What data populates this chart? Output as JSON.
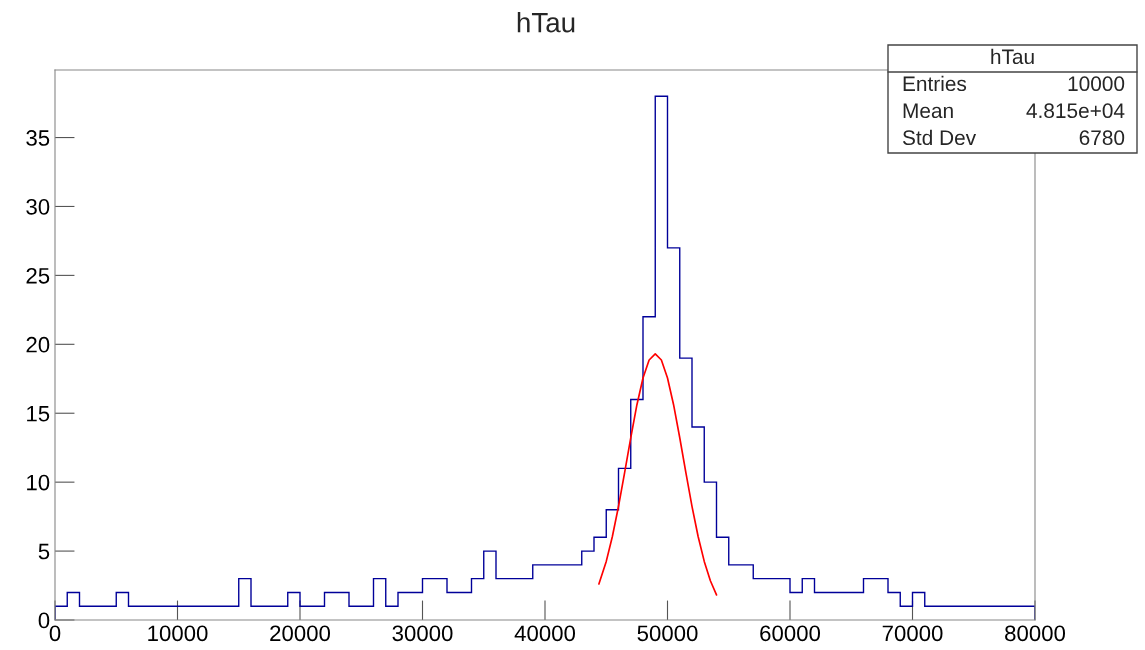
{
  "chart_data": {
    "type": "histogram",
    "title": "hTau",
    "color": "#000099",
    "bins": [
      0,
      1000,
      2000,
      3000,
      4000,
      5000,
      6000,
      7000,
      8000,
      9000,
      10000,
      11000,
      12000,
      13000,
      14000,
      15000,
      16000,
      17000,
      18000,
      19000,
      20000,
      21000,
      22000,
      23000,
      24000,
      25000,
      26000,
      27000,
      28000,
      29000,
      30000,
      31000,
      32000,
      33000,
      34000,
      35000,
      36000,
      37000,
      38000,
      39000,
      40000,
      41000,
      42000,
      43000,
      44000,
      45000,
      46000,
      47000,
      48000,
      49000,
      50000,
      51000,
      52000,
      53000,
      54000,
      55000,
      56000,
      57000,
      58000,
      59000,
      60000,
      61000,
      62000,
      63000,
      64000,
      65000,
      66000,
      67000,
      68000,
      69000,
      70000,
      71000,
      72000,
      73000,
      74000,
      75000,
      76000,
      77000,
      78000,
      79000,
      80000
    ],
    "values": [
      1,
      2,
      1,
      1,
      1,
      2,
      1,
      1,
      1,
      1,
      1,
      1,
      1,
      1,
      1,
      3,
      1,
      1,
      1,
      2,
      1,
      1,
      2,
      2,
      1,
      1,
      3,
      1,
      2,
      2,
      3,
      3,
      2,
      2,
      3,
      5,
      3,
      3,
      3,
      4,
      4,
      4,
      4,
      5,
      6,
      8,
      11,
      16,
      22,
      38,
      27,
      19,
      14,
      10,
      6,
      4,
      4,
      3,
      3,
      3,
      2,
      3,
      2,
      2,
      2,
      2,
      3,
      3,
      2,
      1,
      2,
      1,
      1,
      1,
      1,
      1,
      1,
      1,
      1,
      1
    ],
    "series": [
      {
        "type": "line",
        "color": "#ff0000",
        "x": [
          44400,
          45000,
          45500,
          46000,
          46500,
          47000,
          47500,
          48000,
          48500,
          49000,
          49500,
          50000,
          50500,
          51000,
          51500,
          52000,
          52500,
          53000,
          53500,
          54000
        ],
        "values": [
          2.61,
          4.25,
          6.06,
          8.24,
          10.69,
          13.22,
          15.6,
          17.56,
          18.86,
          19.3,
          18.86,
          17.56,
          15.6,
          13.22,
          10.69,
          8.24,
          6.06,
          4.25,
          2.85,
          1.82
        ]
      }
    ],
    "xlim": [
      0,
      80000
    ],
    "xticks": [
      0,
      10000,
      20000,
      30000,
      40000,
      50000,
      60000,
      70000,
      80000
    ],
    "ylim": [
      0,
      39.9
    ],
    "yticks": [
      0,
      5,
      10,
      15,
      20,
      25,
      30,
      35
    ],
    "grid": false,
    "annotations": [
      "hTau",
      "Entries",
      "10000",
      "Mean",
      "4.815e+04",
      "Std Dev",
      "6780"
    ]
  }
}
